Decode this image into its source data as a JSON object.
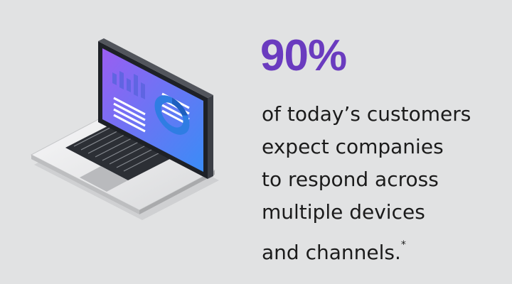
{
  "stat": {
    "value": "90%",
    "color": "#6a3bbf"
  },
  "caption": {
    "lines": [
      "of today’s customers",
      "expect companies",
      "to respond across",
      "multiple devices",
      "and channels."
    ],
    "footnote_mark": "*"
  },
  "illustration": {
    "icon": "laptop-icon",
    "screen_gradient": [
      "#8a5cf0",
      "#3f87f5"
    ]
  }
}
